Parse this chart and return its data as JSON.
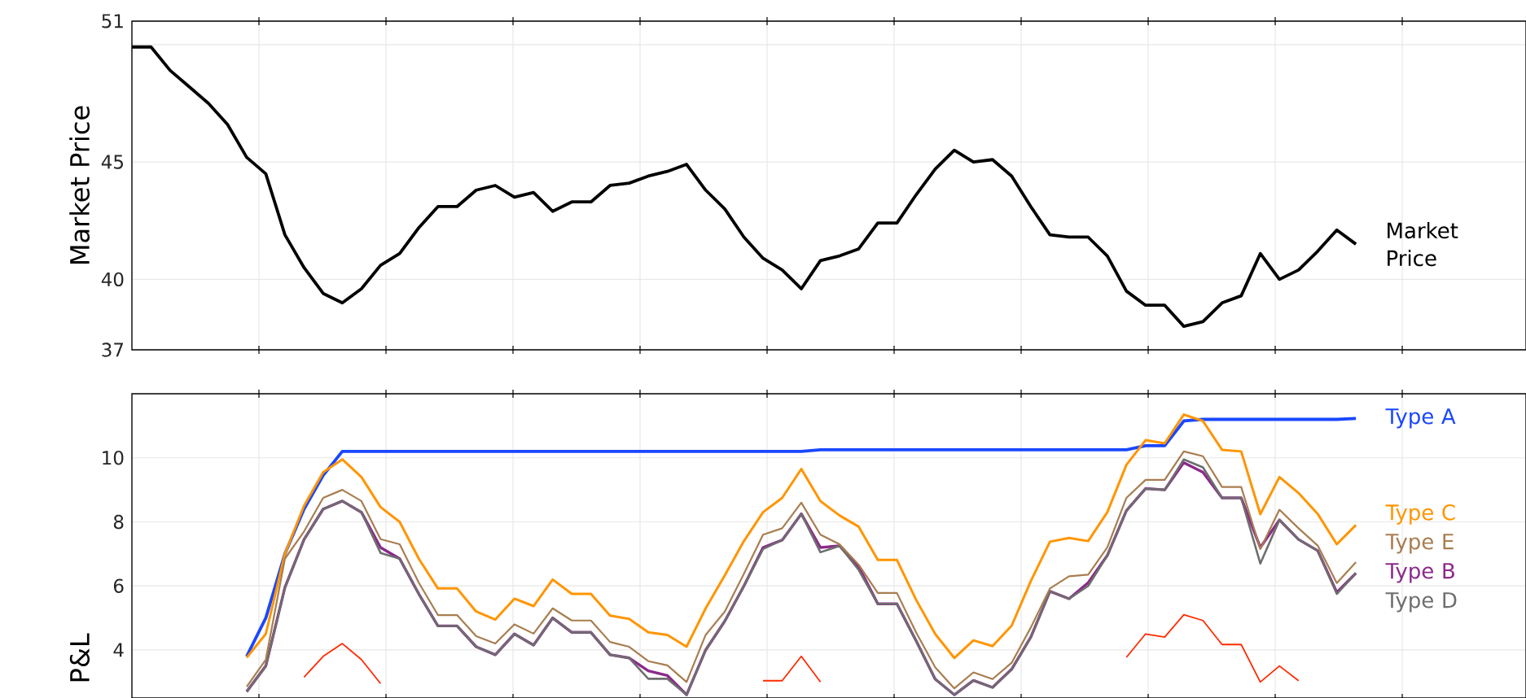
{
  "chart_data": [
    {
      "type": "line",
      "ylabel": "Market Price",
      "categories": [
        null,
        null,
        null,
        null,
        null,
        null,
        null,
        null,
        null,
        null,
        null,
        null,
        null,
        null,
        null,
        null,
        null,
        null,
        null,
        null,
        null,
        null,
        null,
        null,
        null,
        null,
        null,
        null,
        null,
        null,
        null,
        null,
        null,
        null,
        null,
        null,
        null,
        null,
        null,
        null,
        null,
        null,
        null,
        null,
        null,
        null,
        null,
        null,
        null,
        null,
        null,
        null,
        null,
        null,
        null,
        null,
        null,
        null,
        null,
        null,
        null,
        null,
        null,
        null,
        null
      ],
      "ylim": [
        37,
        51
      ],
      "yticks": [
        37,
        40,
        45,
        {
          "value": 50,
          "label": null
        },
        51
      ],
      "grid": true,
      "tick_labels": "y",
      "series": [
        {
          "name": "Market Price",
          "color": "#000000",
          "values": [
            49.9,
            49.9,
            48.9,
            48.2,
            47.5,
            46.6,
            45.2,
            44.5,
            41.9,
            40.5,
            39.4,
            39.0,
            39.6,
            40.6,
            41.1,
            42.2,
            43.1,
            43.1,
            43.8,
            44.0,
            43.5,
            43.7,
            42.9,
            43.3,
            43.3,
            44.0,
            44.1,
            44.4,
            44.6,
            44.9,
            43.8,
            43.0,
            41.8,
            40.9,
            40.4,
            39.6,
            40.8,
            41.0,
            41.3,
            42.4,
            42.4,
            43.6,
            44.7,
            45.5,
            45.0,
            45.1,
            44.4,
            43.1,
            41.9,
            41.8,
            41.8,
            41.0,
            39.5,
            38.9,
            38.9,
            38.0,
            38.2,
            39.0,
            39.3,
            41.1,
            40.0,
            40.4,
            41.2,
            42.1,
            41.5
          ]
        }
      ]
    },
    {
      "type": "line",
      "ylabel": "P&L",
      "categories": [
        null,
        null,
        null,
        null,
        null,
        null,
        null,
        null,
        null,
        null,
        null,
        null,
        null,
        null,
        null,
        null,
        null,
        null,
        null,
        null,
        null,
        null,
        null,
        null,
        null,
        null,
        null,
        null,
        null,
        null,
        null,
        null,
        null,
        null,
        null,
        null,
        null,
        null,
        null,
        null,
        null,
        null,
        null,
        null,
        null,
        null,
        null,
        null,
        null,
        null,
        null,
        null,
        null,
        null,
        null,
        null,
        null,
        null,
        null,
        null,
        null,
        null,
        null,
        null,
        null
      ],
      "ylim": [
        2.5,
        12
      ],
      "yticks": [
        4,
        6,
        8,
        10
      ],
      "grid": true,
      "tick_labels": "y",
      "series": [
        {
          "name": "Type A",
          "color": "#1a47ff",
          "values": [
            null,
            null,
            null,
            null,
            null,
            null,
            3.8,
            5.0,
            7.0,
            8.4,
            9.45,
            10.2,
            10.2,
            10.2,
            10.2,
            10.2,
            10.2,
            10.2,
            10.2,
            10.2,
            10.2,
            10.2,
            10.2,
            10.2,
            10.2,
            10.2,
            10.2,
            10.2,
            10.2,
            10.2,
            10.2,
            10.2,
            10.2,
            10.2,
            10.2,
            10.2,
            10.25,
            10.25,
            10.25,
            10.25,
            10.25,
            10.25,
            10.25,
            10.25,
            10.25,
            10.25,
            10.25,
            10.25,
            10.25,
            10.25,
            10.25,
            10.25,
            10.25,
            10.38,
            10.38,
            11.15,
            11.2,
            11.2,
            11.2,
            11.2,
            11.2,
            11.2,
            11.2,
            11.2,
            11.23
          ]
        },
        {
          "name": "Type B",
          "color": "#8b2a8b",
          "values": [
            null,
            null,
            null,
            null,
            null,
            null,
            2.7,
            3.5,
            5.95,
            7.45,
            8.4,
            8.65,
            8.3,
            7.2,
            6.85,
            5.75,
            4.75,
            4.75,
            4.1,
            3.85,
            4.5,
            4.15,
            5.0,
            4.55,
            4.55,
            3.85,
            3.75,
            3.35,
            3.2,
            2.6,
            4.0,
            4.9,
            6.0,
            7.2,
            7.43,
            8.25,
            7.2,
            7.25,
            6.6,
            5.44,
            5.44,
            4.29,
            3.09,
            2.6,
            3.05,
            2.83,
            3.4,
            4.4,
            5.83,
            5.6,
            6.1,
            6.95,
            8.35,
            9.04,
            9.0,
            9.85,
            9.55,
            8.75,
            8.75,
            7.2,
            8.06,
            7.45,
            7.1,
            5.8,
            6.4
          ]
        },
        {
          "name": "Type C",
          "color": "#ff9500",
          "values": [
            null,
            null,
            null,
            null,
            null,
            null,
            3.76,
            4.5,
            7.0,
            8.5,
            9.55,
            9.95,
            9.4,
            8.46,
            8.0,
            6.85,
            5.92,
            5.92,
            5.2,
            4.95,
            5.6,
            5.37,
            6.2,
            5.75,
            5.75,
            5.07,
            4.97,
            4.55,
            4.47,
            4.1,
            5.3,
            6.33,
            7.4,
            8.3,
            8.75,
            9.65,
            8.65,
            8.2,
            7.85,
            6.81,
            6.81,
            5.57,
            4.5,
            3.75,
            4.3,
            4.12,
            4.76,
            6.15,
            7.38,
            7.5,
            7.4,
            8.3,
            9.78,
            10.55,
            10.45,
            11.35,
            11.15,
            10.25,
            10.2,
            8.24,
            9.4,
            8.9,
            8.25,
            7.3,
            7.9
          ]
        },
        {
          "name": "Type D",
          "color": "#6e6e6e",
          "values": [
            null,
            null,
            null,
            null,
            null,
            null,
            2.7,
            3.5,
            5.95,
            7.45,
            8.4,
            8.65,
            8.3,
            7.03,
            6.85,
            5.75,
            4.75,
            4.75,
            4.1,
            3.85,
            4.5,
            4.15,
            5.0,
            4.55,
            4.55,
            3.85,
            3.75,
            3.1,
            3.1,
            2.6,
            4.0,
            4.9,
            6.0,
            7.15,
            7.43,
            8.25,
            7.05,
            7.25,
            6.5,
            5.44,
            5.44,
            4.29,
            3.09,
            2.6,
            3.05,
            2.83,
            3.4,
            4.4,
            5.83,
            5.6,
            6.0,
            6.95,
            8.35,
            9.04,
            9.0,
            9.95,
            9.7,
            8.75,
            8.75,
            6.7,
            8.06,
            7.45,
            7.1,
            5.75,
            6.4
          ]
        },
        {
          "name": "Type E",
          "color": "#a87d50",
          "values": [
            null,
            null,
            null,
            null,
            null,
            null,
            2.85,
            3.7,
            6.85,
            7.7,
            8.75,
            9.0,
            8.65,
            7.46,
            7.3,
            6.1,
            5.09,
            5.09,
            4.43,
            4.2,
            4.8,
            4.51,
            5.3,
            4.92,
            4.92,
            4.25,
            4.1,
            3.65,
            3.52,
            3.0,
            4.47,
            5.2,
            6.38,
            7.6,
            7.8,
            8.6,
            7.6,
            7.3,
            6.66,
            5.78,
            5.78,
            4.55,
            3.46,
            2.8,
            3.3,
            3.09,
            3.6,
            4.7,
            5.92,
            6.3,
            6.35,
            7.2,
            8.75,
            9.31,
            9.31,
            10.2,
            10.05,
            9.09,
            9.09,
            7.15,
            8.38,
            7.8,
            7.26,
            6.09,
            6.74
          ]
        },
        {
          "color": "#ff2a00",
          "values": [
            null,
            null,
            null,
            null,
            null,
            null,
            null,
            null,
            null,
            3.15,
            3.8,
            4.2,
            3.7,
            2.95,
            null,
            null,
            null,
            null,
            null,
            null,
            null,
            null,
            null,
            null,
            null,
            null,
            null,
            null,
            null,
            null,
            null,
            null,
            null,
            3.04,
            3.04,
            3.8,
            3.0,
            null,
            null,
            null,
            null,
            null,
            null,
            null,
            null,
            null,
            null,
            null,
            null,
            null,
            null,
            null,
            3.77,
            4.5,
            4.4,
            5.1,
            4.92,
            4.17,
            4.17,
            3.0,
            3.5,
            3.04,
            null,
            null,
            null
          ]
        }
      ]
    }
  ]
}
